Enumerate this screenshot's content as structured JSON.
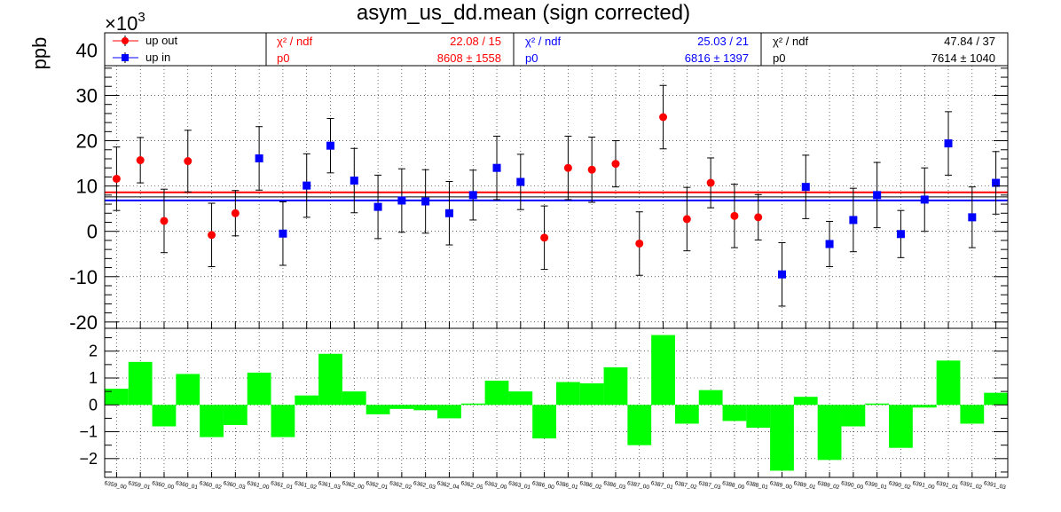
{
  "chart_data": [
    {
      "type": "scatter",
      "title": "asym_us_dd.mean (sign corrected)",
      "ylabel": "ppb",
      "y_multiplier": "×10",
      "y_multiplier_exp": "3",
      "ylim": [
        -20,
        43
      ],
      "yticks": [
        -20,
        -10,
        0,
        10,
        20,
        30,
        40
      ],
      "grid": true,
      "legend_position": "top-left",
      "categories": [
        "6359_00",
        "6359_01",
        "6360_00",
        "6360_01",
        "6360_02",
        "6360_03",
        "6361_00",
        "6361_01",
        "6361_02",
        "6361_03",
        "6362_00",
        "6362_01",
        "6362_02",
        "6362_03",
        "6362_04",
        "6362_05",
        "6363_00",
        "6363_01",
        "6386_00",
        "6386_01",
        "6386_02",
        "6386_03",
        "6387_00",
        "6387_01",
        "6387_02",
        "6387_03",
        "6388_00",
        "6388_01",
        "6389_00",
        "6389_01",
        "6389_02",
        "6390_00",
        "6390_01",
        "6390_02",
        "6391_00",
        "6391_01",
        "6391_02",
        "6391_03"
      ],
      "series": [
        {
          "name": "up out",
          "color": "#ff0000",
          "marker": "circle",
          "points": [
            {
              "i": 0,
              "y": 11.6,
              "err": 7.0
            },
            {
              "i": 1,
              "y": 15.7,
              "err": 5.0
            },
            {
              "i": 2,
              "y": 2.3,
              "err": 7.0
            },
            {
              "i": 3,
              "y": 15.5,
              "err": 6.8
            },
            {
              "i": 4,
              "y": -0.8,
              "err": 7.0
            },
            {
              "i": 5,
              "y": 4.0,
              "err": 5.0
            },
            {
              "i": 18,
              "y": -1.4,
              "err": 7.0
            },
            {
              "i": 19,
              "y": 14.0,
              "err": 7.0
            },
            {
              "i": 20,
              "y": 13.6,
              "err": 7.2
            },
            {
              "i": 21,
              "y": 14.9,
              "err": 5.1
            },
            {
              "i": 22,
              "y": -2.7,
              "err": 7.0
            },
            {
              "i": 23,
              "y": 25.2,
              "err": 7.0
            },
            {
              "i": 24,
              "y": 2.7,
              "err": 7.0
            },
            {
              "i": 25,
              "y": 10.7,
              "err": 5.5
            },
            {
              "i": 26,
              "y": 3.4,
              "err": 7.0
            },
            {
              "i": 27,
              "y": 3.1,
              "err": 5.0
            }
          ],
          "fit": {
            "chi2_label": "χ² / ndf",
            "chi2_value": "22.08 / 15",
            "p0_label": "p0",
            "p0_value": "8608 ±  1558",
            "p0": 8.608
          }
        },
        {
          "name": "up in",
          "color": "#0000ff",
          "marker": "square",
          "points": [
            {
              "i": 6,
              "y": 16.1,
              "err": 7.0
            },
            {
              "i": 7,
              "y": -0.5,
              "err": 7.0
            },
            {
              "i": 8,
              "y": 10.1,
              "err": 7.0
            },
            {
              "i": 9,
              "y": 18.9,
              "err": 6.0
            },
            {
              "i": 10,
              "y": 11.2,
              "err": 7.1
            },
            {
              "i": 11,
              "y": 5.4,
              "err": 7.0
            },
            {
              "i": 12,
              "y": 6.8,
              "err": 7.0
            },
            {
              "i": 13,
              "y": 6.6,
              "err": 7.0
            },
            {
              "i": 14,
              "y": 4.0,
              "err": 7.0
            },
            {
              "i": 15,
              "y": 8.0,
              "err": 5.5
            },
            {
              "i": 16,
              "y": 14.0,
              "err": 7.0
            },
            {
              "i": 17,
              "y": 10.9,
              "err": 6.1
            },
            {
              "i": 28,
              "y": -9.5,
              "err": 7.0
            },
            {
              "i": 29,
              "y": 9.8,
              "err": 7.0
            },
            {
              "i": 30,
              "y": -2.8,
              "err": 5.0
            },
            {
              "i": 31,
              "y": 2.5,
              "err": 7.0
            },
            {
              "i": 32,
              "y": 8.0,
              "err": 7.2
            },
            {
              "i": 33,
              "y": -0.6,
              "err": 5.2
            },
            {
              "i": 34,
              "y": 7.0,
              "err": 7.0
            },
            {
              "i": 35,
              "y": 19.4,
              "err": 7.0
            },
            {
              "i": 36,
              "y": 3.1,
              "err": 6.7
            },
            {
              "i": 37,
              "y": 10.7,
              "err": 6.9
            }
          ],
          "fit": {
            "chi2_label": "χ² / ndf",
            "chi2_value": "25.03 / 21",
            "p0_label": "p0",
            "p0_value": "6816 ±  1397",
            "p0": 6.816
          }
        }
      ],
      "combined_fit": {
        "color": "#000000",
        "chi2_label": "χ² / ndf",
        "chi2_value": "47.84 / 37",
        "p0_label": "p0",
        "p0_value": "7614 ±  1040",
        "p0": 7.614
      }
    },
    {
      "type": "bar",
      "color": "#00ff00",
      "ylim": [
        -2.7,
        2.7
      ],
      "yticks": [
        -2,
        -1,
        0,
        1,
        2
      ],
      "grid": true,
      "categories_ref": "same as upper panel",
      "values": [
        0.6,
        1.6,
        -0.8,
        1.15,
        -1.2,
        -0.75,
        1.2,
        -1.2,
        0.35,
        1.9,
        0.5,
        -0.35,
        -0.15,
        -0.2,
        -0.5,
        0.05,
        0.9,
        0.5,
        -1.25,
        0.85,
        0.8,
        1.4,
        -1.5,
        2.6,
        -0.7,
        0.55,
        -0.6,
        -0.85,
        -2.45,
        0.3,
        -2.05,
        -0.8,
        0.05,
        -1.6,
        -0.1,
        1.65,
        -0.7,
        0.45
      ]
    }
  ]
}
